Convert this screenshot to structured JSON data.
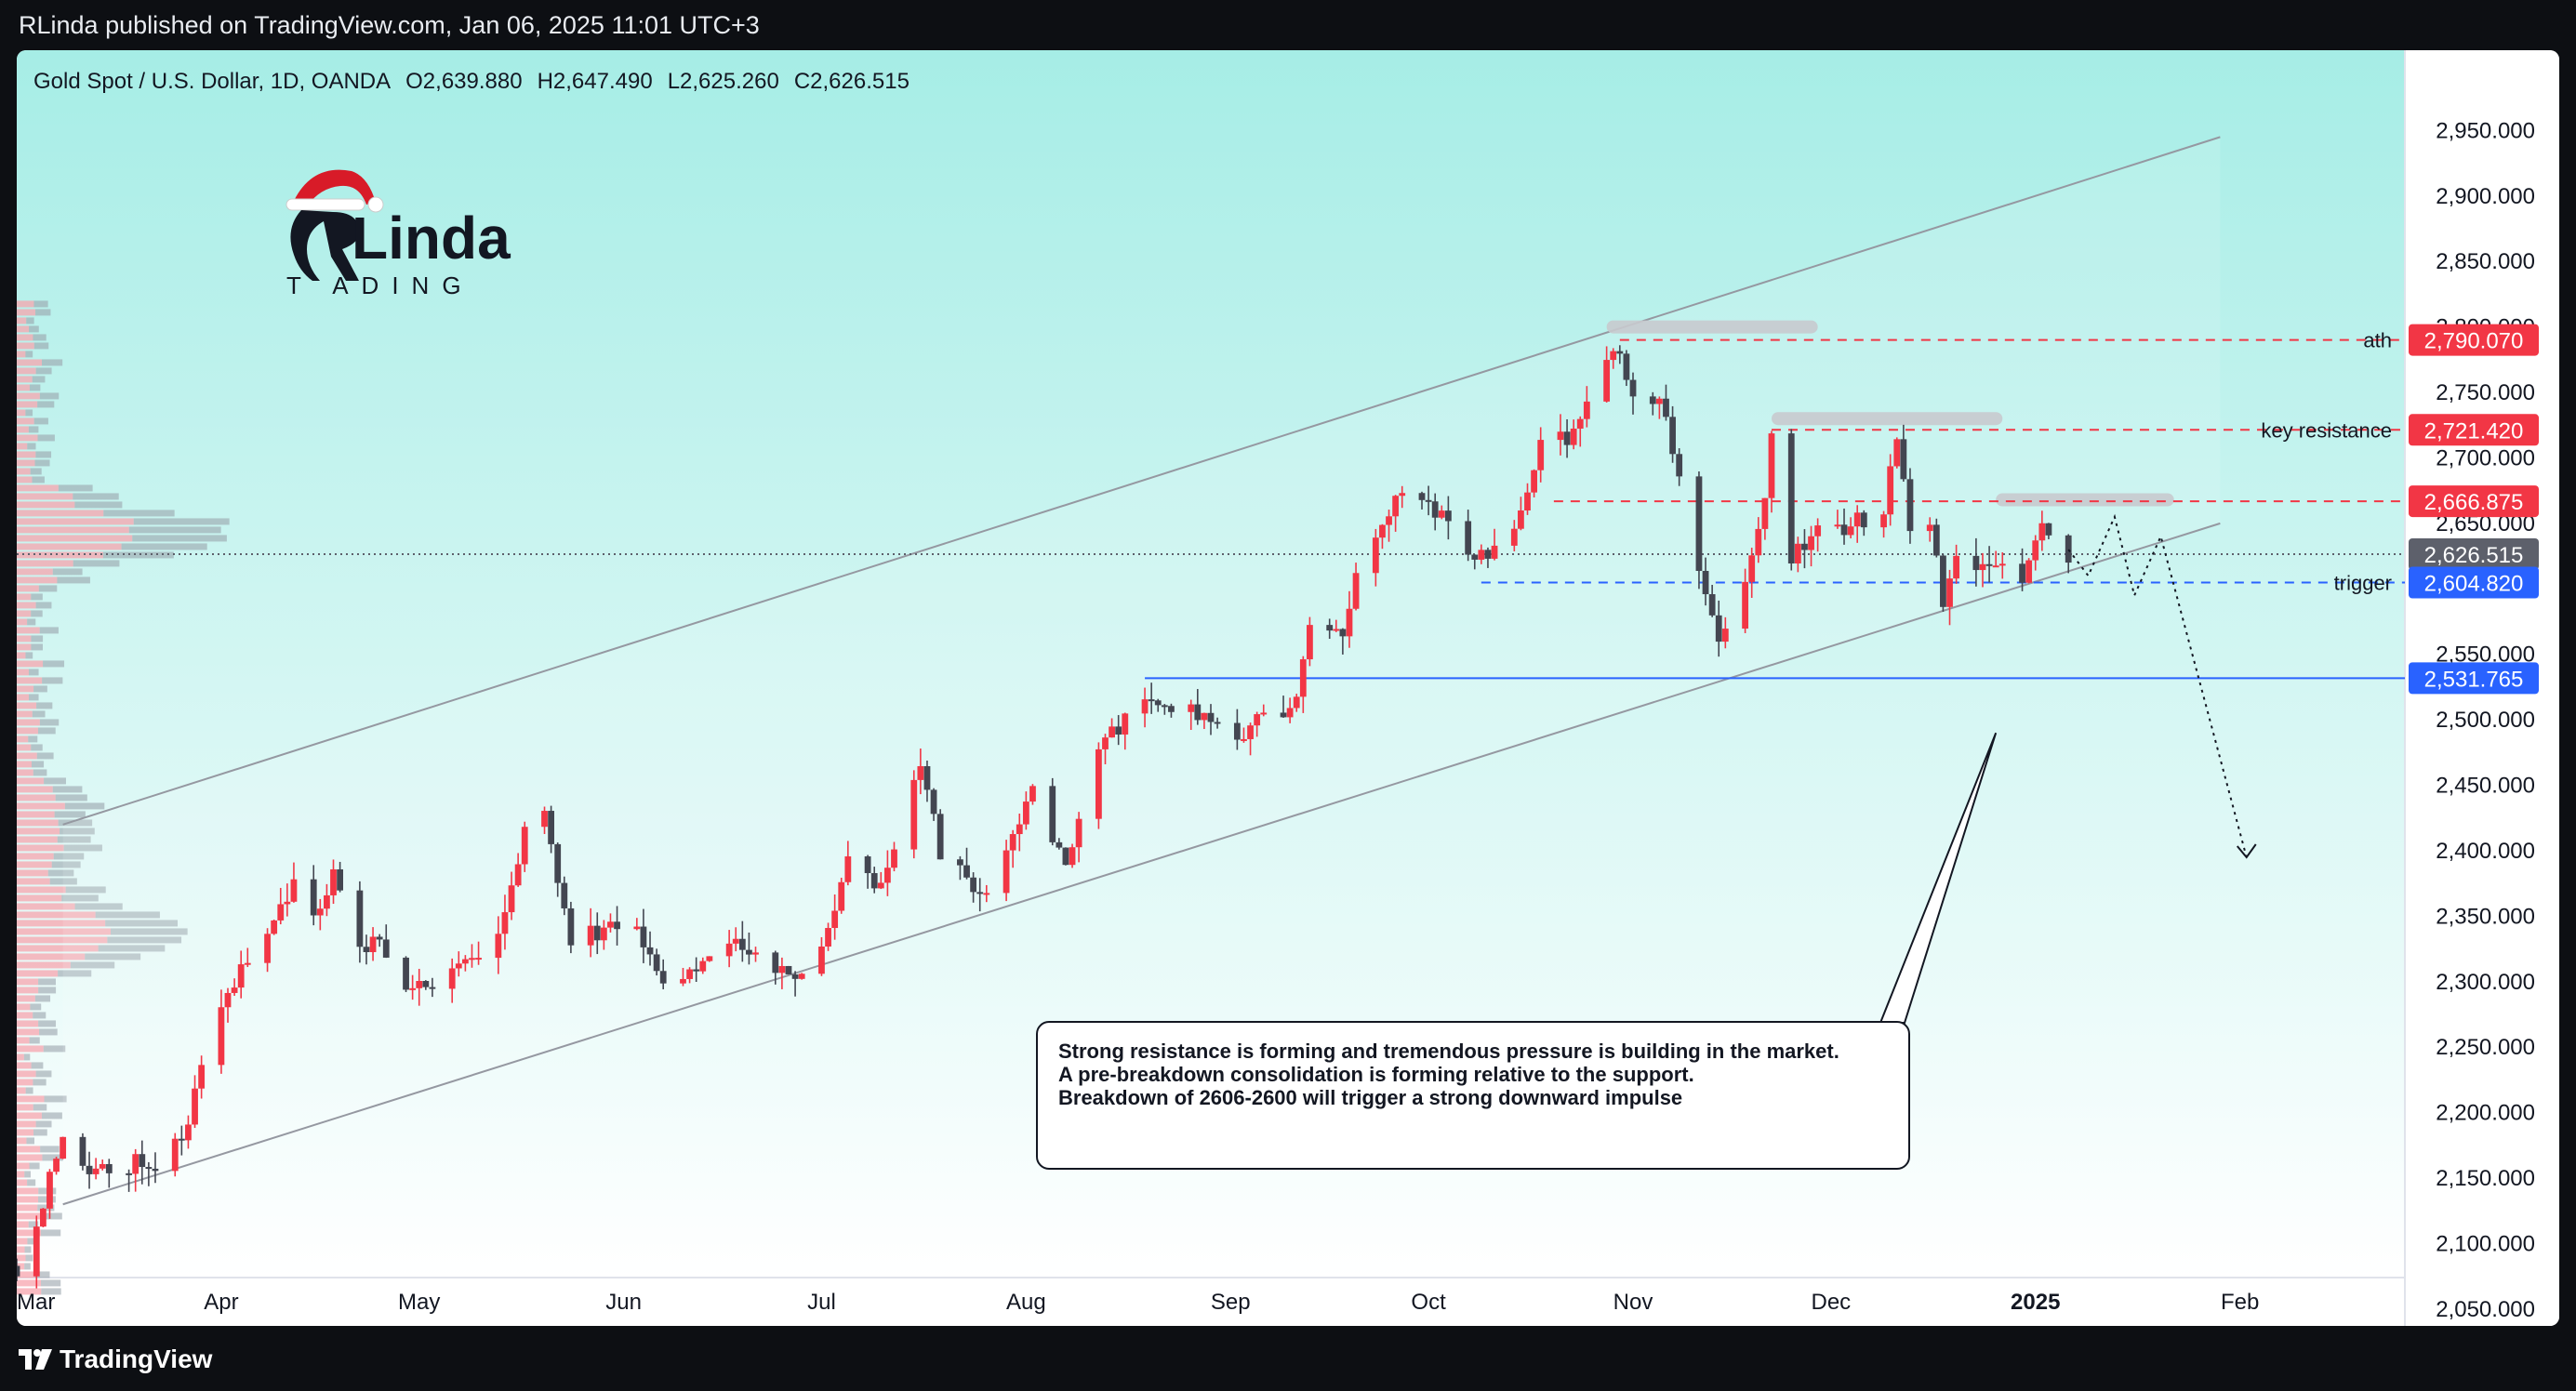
{
  "header": {
    "published": "RLinda published on TradingView.com, Jan 06, 2025 11:01 UTC+3"
  },
  "footer": {
    "brand": "TradingView"
  },
  "chart_data": {
    "type": "candlestick",
    "symbol_line": {
      "name": "Gold Spot / U.S. Dollar, 1D, OANDA",
      "open": "O2,639.880",
      "high": "H2,647.490",
      "low": "L2,625.260",
      "close": "C2,626.515"
    },
    "y_range": [
      2040,
      2990
    ],
    "y_ticks": [
      {
        "value": 2950,
        "label": "2,950.000"
      },
      {
        "value": 2900,
        "label": "2,900.000"
      },
      {
        "value": 2850,
        "label": "2,850.000"
      },
      {
        "value": 2800,
        "label": "2,800.000"
      },
      {
        "value": 2750,
        "label": "2,750.000"
      },
      {
        "value": 2700,
        "label": "2,700.000"
      },
      {
        "value": 2650,
        "label": "2,650.000"
      },
      {
        "value": 2550,
        "label": "2,550.000"
      },
      {
        "value": 2500,
        "label": "2,500.000"
      },
      {
        "value": 2450,
        "label": "2,450.000"
      },
      {
        "value": 2400,
        "label": "2,400.000"
      },
      {
        "value": 2350,
        "label": "2,350.000"
      },
      {
        "value": 2300,
        "label": "2,300.000"
      },
      {
        "value": 2250,
        "label": "2,250.000"
      },
      {
        "value": 2200,
        "label": "2,200.000"
      },
      {
        "value": 2150,
        "label": "2,150.000"
      },
      {
        "value": 2100,
        "label": "2,100.000"
      },
      {
        "value": 2050,
        "label": "2,050.000"
      }
    ],
    "x_range": [
      "2024-03-01",
      "2025-02-26"
    ],
    "x_ticks": [
      {
        "date": "2024-03-01",
        "label": "Mar",
        "bold": false
      },
      {
        "date": "2024-04-01",
        "label": "Apr",
        "bold": false
      },
      {
        "date": "2024-05-01",
        "label": "May",
        "bold": false
      },
      {
        "date": "2024-06-01",
        "label": "Jun",
        "bold": false
      },
      {
        "date": "2024-07-01",
        "label": "Jul",
        "bold": false
      },
      {
        "date": "2024-08-01",
        "label": "Aug",
        "bold": false
      },
      {
        "date": "2024-09-01",
        "label": "Sep",
        "bold": false
      },
      {
        "date": "2024-10-01",
        "label": "Oct",
        "bold": false
      },
      {
        "date": "2024-11-01",
        "label": "Nov",
        "bold": false
      },
      {
        "date": "2024-12-01",
        "label": "Dec",
        "bold": false
      },
      {
        "date": "2025-01-01",
        "label": "2025",
        "bold": true
      },
      {
        "date": "2025-02-01",
        "label": "Feb",
        "bold": false
      }
    ],
    "close_path": [
      [
        "2024-03-01",
        2083
      ],
      [
        "2024-03-04",
        2115
      ],
      [
        "2024-03-06",
        2150
      ],
      [
        "2024-03-08",
        2180
      ],
      [
        "2024-03-12",
        2160
      ],
      [
        "2024-03-15",
        2150
      ],
      [
        "2024-03-20",
        2165
      ],
      [
        "2024-03-22",
        2160
      ],
      [
        "2024-03-26",
        2180
      ],
      [
        "2024-03-29",
        2233
      ],
      [
        "2024-04-03",
        2300
      ],
      [
        "2024-04-08",
        2340
      ],
      [
        "2024-04-12",
        2375
      ],
      [
        "2024-04-15",
        2350
      ],
      [
        "2024-04-18",
        2380
      ],
      [
        "2024-04-22",
        2325
      ],
      [
        "2024-04-25",
        2330
      ],
      [
        "2024-04-30",
        2290
      ],
      [
        "2024-05-03",
        2300
      ],
      [
        "2024-05-08",
        2310
      ],
      [
        "2024-05-13",
        2335
      ],
      [
        "2024-05-17",
        2415
      ],
      [
        "2024-05-20",
        2425
      ],
      [
        "2024-05-24",
        2335
      ],
      [
        "2024-05-29",
        2340
      ],
      [
        "2024-06-03",
        2345
      ],
      [
        "2024-06-07",
        2295
      ],
      [
        "2024-06-12",
        2315
      ],
      [
        "2024-06-18",
        2330
      ],
      [
        "2024-06-21",
        2320
      ],
      [
        "2024-06-26",
        2300
      ],
      [
        "2024-07-01",
        2325
      ],
      [
        "2024-07-05",
        2390
      ],
      [
        "2024-07-10",
        2370
      ],
      [
        "2024-07-16",
        2465
      ],
      [
        "2024-07-19",
        2400
      ],
      [
        "2024-07-25",
        2365
      ],
      [
        "2024-07-30",
        2410
      ],
      [
        "2024-08-02",
        2445
      ],
      [
        "2024-08-07",
        2385
      ],
      [
        "2024-08-12",
        2470
      ],
      [
        "2024-08-16",
        2505
      ],
      [
        "2024-08-20",
        2510
      ],
      [
        "2024-08-23",
        2512
      ],
      [
        "2024-08-28",
        2505
      ],
      [
        "2024-09-03",
        2490
      ],
      [
        "2024-09-06",
        2500
      ],
      [
        "2024-09-11",
        2515
      ],
      [
        "2024-09-13",
        2578
      ],
      [
        "2024-09-18",
        2560
      ],
      [
        "2024-09-20",
        2620
      ],
      [
        "2024-09-26",
        2670
      ],
      [
        "2024-10-01",
        2660
      ],
      [
        "2024-10-04",
        2654
      ],
      [
        "2024-10-08",
        2620
      ],
      [
        "2024-10-10",
        2630
      ],
      [
        "2024-10-15",
        2655
      ],
      [
        "2024-10-18",
        2720
      ],
      [
        "2024-10-23",
        2715
      ],
      [
        "2024-10-25",
        2745
      ],
      [
        "2024-10-30",
        2785
      ],
      [
        "2024-11-01",
        2740
      ],
      [
        "2024-11-05",
        2745
      ],
      [
        "2024-11-07",
        2705
      ],
      [
        "2024-11-08",
        2685
      ],
      [
        "2024-11-11",
        2620
      ],
      [
        "2024-11-14",
        2565
      ],
      [
        "2024-11-18",
        2610
      ],
      [
        "2024-11-21",
        2668
      ],
      [
        "2024-11-22",
        2715
      ],
      [
        "2024-11-25",
        2625
      ],
      [
        "2024-11-29",
        2650
      ],
      [
        "2024-12-04",
        2648
      ],
      [
        "2024-12-09",
        2660
      ],
      [
        "2024-12-11",
        2718
      ],
      [
        "2024-12-13",
        2650
      ],
      [
        "2024-12-16",
        2652
      ],
      [
        "2024-12-18",
        2585
      ],
      [
        "2024-12-20",
        2622
      ],
      [
        "2024-12-24",
        2618
      ],
      [
        "2024-12-27",
        2620
      ],
      [
        "2024-12-30",
        2605
      ],
      [
        "2025-01-02",
        2657
      ],
      [
        "2025-01-03",
        2640
      ],
      [
        "2025-01-06",
        2626.515
      ]
    ],
    "channel": {
      "upper": [
        [
          "2024-03-08",
          2420
        ],
        [
          "2025-01-29",
          2945
        ]
      ],
      "lower": [
        [
          "2024-03-08",
          2130
        ],
        [
          "2025-01-29",
          2650
        ]
      ]
    },
    "levels": [
      {
        "label": "ath",
        "value": 2790.07,
        "value_label": "2,790.070",
        "color": "#f23645",
        "style": "dashed"
      },
      {
        "label": "key resistance",
        "value": 2721.42,
        "value_label": "2,721.420",
        "color": "#f23645",
        "style": "dashed"
      },
      {
        "label": "",
        "value": 2666.875,
        "value_label": "2,666.875",
        "color": "#f23645",
        "style": "dashed"
      },
      {
        "label": "",
        "value": 2626.515,
        "value_label": "2,626.515",
        "color": "#5d606b",
        "style": "dotted"
      },
      {
        "label": "trigger",
        "value": 2604.82,
        "value_label": "2,604.820",
        "color": "#2962ff",
        "style": "dashed"
      },
      {
        "label": "",
        "value": 2531.765,
        "value_label": "2,531.765",
        "color": "#2962ff",
        "style": "solid"
      }
    ],
    "resistance_zones": [
      {
        "from": "2024-10-28",
        "to": "2024-11-29",
        "value": 2800
      },
      {
        "from": "2024-11-22",
        "to": "2024-12-27",
        "value": 2730
      },
      {
        "from": "2024-12-26",
        "to": "2025-01-22",
        "value": 2668
      }
    ],
    "projection": [
      [
        "2025-01-06",
        2630
      ],
      [
        "2025-01-09",
        2610
      ],
      [
        "2025-01-13",
        2655
      ],
      [
        "2025-01-16",
        2595
      ],
      [
        "2025-01-20",
        2640
      ],
      [
        "2025-02-02",
        2395
      ]
    ],
    "annotation": {
      "lines": [
        "Strong resistance is forming and tremendous pressure is building in the market.",
        "A pre-breakdown consolidation is forming relative to the support.",
        "Breakdown of 2606-2600 will trigger a strong downward impulse"
      ],
      "pointer_to": [
        "2024-12-26",
        2490
      ]
    },
    "colors": {
      "up": "#f23645",
      "down": "#434651",
      "bg_top": "#a6ede6",
      "bg_bottom": "#ffffff"
    },
    "grid": false,
    "legend_position": "top-left"
  },
  "logo": {
    "brand": "RLinda",
    "sub": "TRADING"
  }
}
